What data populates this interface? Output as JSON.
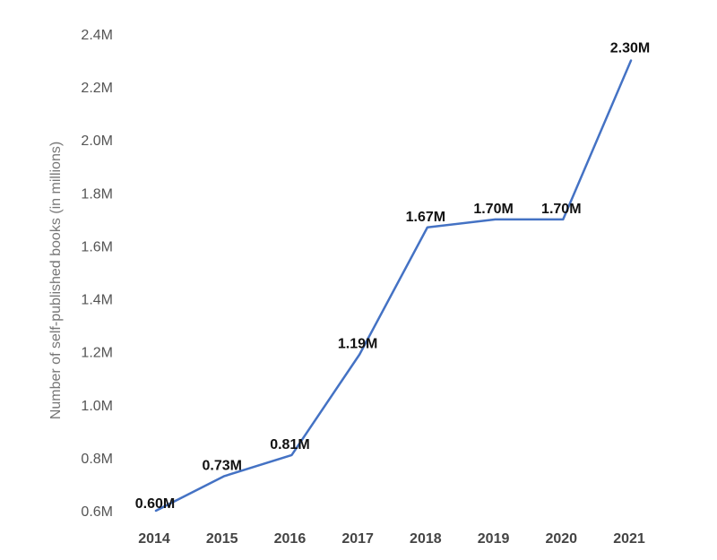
{
  "chart_data": {
    "type": "line",
    "title": "",
    "xlabel": "",
    "ylabel": "Number of self-published books (in millions)",
    "x": [
      "2014",
      "2015",
      "2016",
      "2017",
      "2018",
      "2019",
      "2020",
      "2021"
    ],
    "series": [
      {
        "values": [
          0.6,
          0.73,
          0.81,
          1.19,
          1.67,
          1.7,
          1.7,
          2.3
        ],
        "labels": [
          "0.60M",
          "0.73M",
          "0.81M",
          "1.19M",
          "1.67M",
          "1.70M",
          "1.70M",
          "2.30M"
        ],
        "color": "#4472c4"
      }
    ],
    "yticks": [
      {
        "value": 0.6,
        "label": "0.6M"
      },
      {
        "value": 0.8,
        "label": "0.8M"
      },
      {
        "value": 1.0,
        "label": "1.0M"
      },
      {
        "value": 1.2,
        "label": "1.2M"
      },
      {
        "value": 1.4,
        "label": "1.4M"
      },
      {
        "value": 1.6,
        "label": "1.6M"
      },
      {
        "value": 1.8,
        "label": "1.8M"
      },
      {
        "value": 2.0,
        "label": "2.0M"
      },
      {
        "value": 2.2,
        "label": "2.2M"
      },
      {
        "value": 2.4,
        "label": "2.4M"
      }
    ],
    "ylim": [
      0.6,
      2.4
    ],
    "grid": false,
    "legend": "none"
  }
}
